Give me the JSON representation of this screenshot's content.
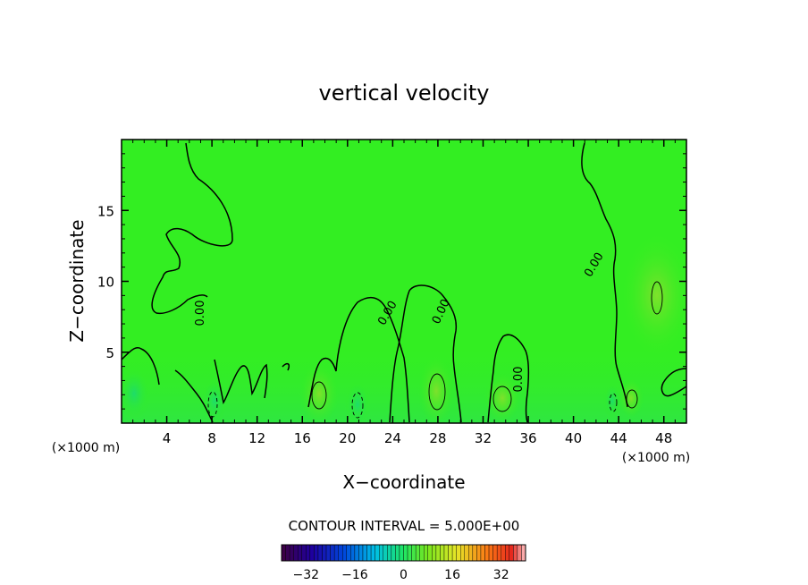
{
  "chart_data": {
    "type": "heatmap",
    "title": "vertical velocity",
    "xlabel": "X−coordinate",
    "ylabel": "Z−coordinate",
    "x_unit_label": "(×1000 m)",
    "xlim": [
      0,
      50
    ],
    "ylim": [
      0,
      20
    ],
    "xticks": [
      4,
      8,
      12,
      16,
      20,
      24,
      28,
      32,
      36,
      40,
      44,
      48
    ],
    "yticks": [
      5,
      10,
      15
    ],
    "contour_label": "0.00",
    "contour_interval_text": "CONTOUR INTERVAL = 5.000E+00",
    "colorbar": {
      "range": [
        -40,
        40
      ],
      "ticks": [
        -32,
        -16,
        0,
        16,
        32
      ],
      "tick_labels": [
        "−32",
        "−16",
        "0",
        "16",
        "32"
      ],
      "colormap": "rainbow"
    },
    "colors": {
      "background_field": "#33ee22",
      "positive_core": "#66e62a",
      "negative_core": "#22e05a"
    }
  }
}
